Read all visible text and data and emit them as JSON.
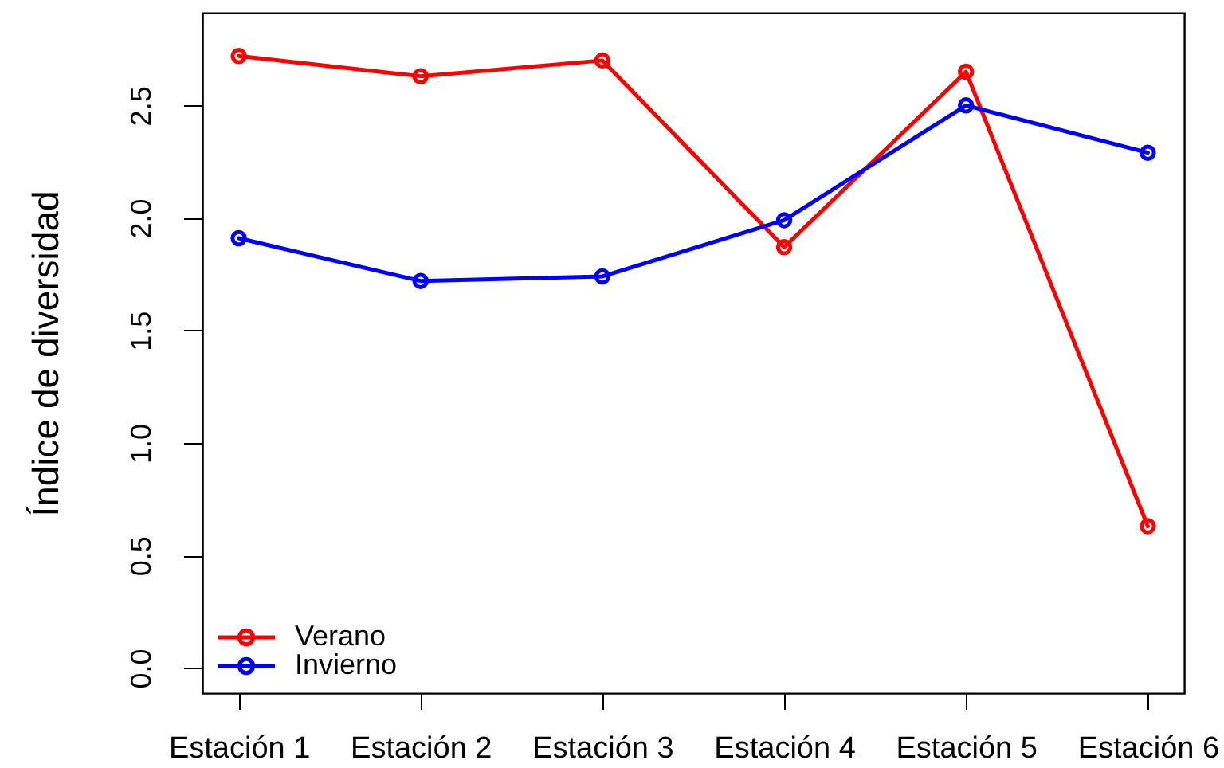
{
  "chart_data": {
    "type": "line",
    "ylabel": "Índice de diversidad",
    "categories": [
      "Estación 1",
      "Estación 2",
      "Estación 3",
      "Estación 4",
      "Estación 5",
      "Estación 6"
    ],
    "series": [
      {
        "name": "Verano",
        "color": "#ff0000",
        "values": [
          2.72,
          2.63,
          2.7,
          1.87,
          2.65,
          0.63
        ]
      },
      {
        "name": "Invierno",
        "color": "#0000ff",
        "values": [
          1.91,
          1.72,
          1.74,
          1.99,
          2.5,
          2.29
        ]
      }
    ],
    "ylim": [
      -0.112,
      2.912
    ],
    "yticks": [
      {
        "value": 0,
        "label": "0.0"
      },
      0.5,
      {
        "value": 1,
        "label": "1.0"
      },
      1.5,
      {
        "value": 2,
        "label": "2.0"
      },
      2.5
    ],
    "legend": "bottom left",
    "marker": "circle",
    "line_style": "solid"
  }
}
